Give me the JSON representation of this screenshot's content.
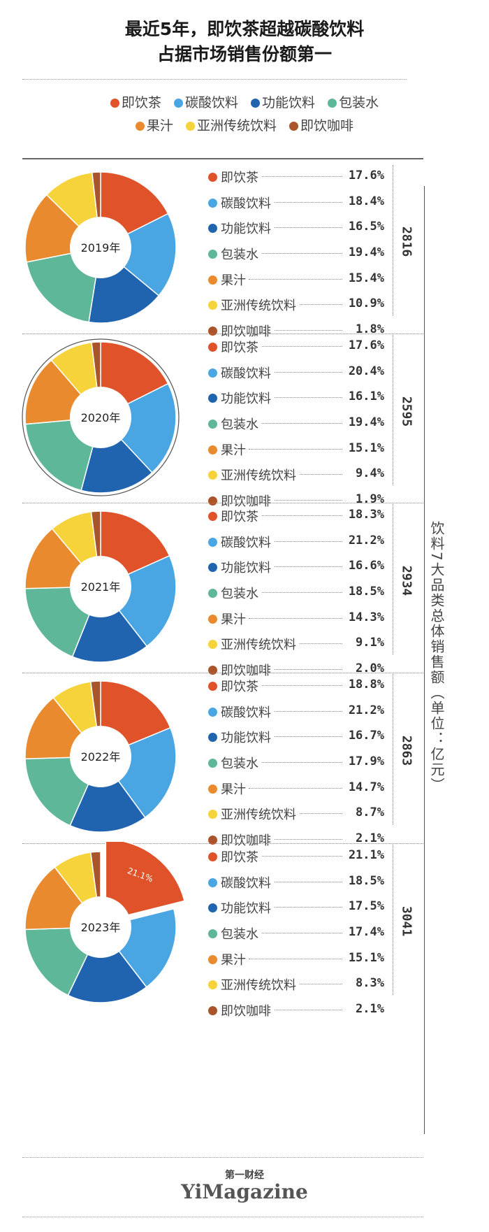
{
  "title": {
    "line1": "最近5年，即饮茶超越碳酸饮料",
    "line2": "占据市场销售份额第一"
  },
  "legend": [
    {
      "label": "即饮茶",
      "color": "#e0532a"
    },
    {
      "label": "碳酸饮料",
      "color": "#4aa6e3"
    },
    {
      "label": "功能饮料",
      "color": "#2063ae"
    },
    {
      "label": "包装水",
      "color": "#5fb79a"
    },
    {
      "label": "果汁",
      "color": "#e98a2e"
    },
    {
      "label": "亚洲传统饮料",
      "color": "#f6d33a"
    },
    {
      "label": "即饮咖啡",
      "color": "#a9542a"
    }
  ],
  "axis_title": "饮料7大品类总体销售额（单位：亿元）",
  "chart_data": [
    {
      "type": "pie",
      "center_label": "2019年",
      "total": "2816",
      "categories": [
        "即饮茶",
        "碳酸饮料",
        "功能饮料",
        "包装水",
        "果汁",
        "亚洲传统饮料",
        "即饮咖啡"
      ],
      "values": [
        17.6,
        18.4,
        16.5,
        19.4,
        15.4,
        10.9,
        1.8
      ],
      "labels": [
        "17.6%",
        "18.4%",
        "16.5%",
        "19.4%",
        "15.4%",
        "10.9%",
        "1.8%"
      ]
    },
    {
      "type": "pie",
      "center_label": "2020年",
      "total": "2595",
      "categories": [
        "即饮茶",
        "碳酸饮料",
        "功能饮料",
        "包装水",
        "果汁",
        "亚洲传统饮料",
        "即饮咖啡"
      ],
      "values": [
        17.6,
        20.4,
        16.1,
        19.4,
        15.1,
        9.4,
        1.9
      ],
      "labels": [
        "17.6%",
        "20.4%",
        "16.1%",
        "19.4%",
        "15.1%",
        "9.4%",
        "1.9%"
      ]
    },
    {
      "type": "pie",
      "center_label": "2021年",
      "total": "2934",
      "categories": [
        "即饮茶",
        "碳酸饮料",
        "功能饮料",
        "包装水",
        "果汁",
        "亚洲传统饮料",
        "即饮咖啡"
      ],
      "values": [
        18.3,
        21.2,
        16.6,
        18.5,
        14.3,
        9.1,
        2.0
      ],
      "labels": [
        "18.3%",
        "21.2%",
        "16.6%",
        "18.5%",
        "14.3%",
        "9.1%",
        "2.0%"
      ]
    },
    {
      "type": "pie",
      "center_label": "2022年",
      "total": "2863",
      "categories": [
        "即饮茶",
        "碳酸饮料",
        "功能饮料",
        "包装水",
        "果汁",
        "亚洲传统饮料",
        "即饮咖啡"
      ],
      "values": [
        18.8,
        21.2,
        16.7,
        17.9,
        14.7,
        8.7,
        2.1
      ],
      "labels": [
        "18.8%",
        "21.2%",
        "16.7%",
        "17.9%",
        "14.7%",
        "8.7%",
        "2.1%"
      ]
    },
    {
      "type": "pie",
      "center_label": "2023年",
      "total": "3041",
      "categories": [
        "即饮茶",
        "碳酸饮料",
        "功能饮料",
        "包装水",
        "果汁",
        "亚洲传统饮料",
        "即饮咖啡"
      ],
      "values": [
        21.1,
        18.5,
        17.5,
        17.4,
        15.1,
        8.3,
        2.1
      ],
      "labels": [
        "21.1%",
        "18.5%",
        "17.5%",
        "17.4%",
        "15.1%",
        "8.3%",
        "2.1%"
      ],
      "exploded_label": "21.1%"
    }
  ],
  "brand": {
    "cn": "第一财经",
    "en": "YiMagazine"
  }
}
